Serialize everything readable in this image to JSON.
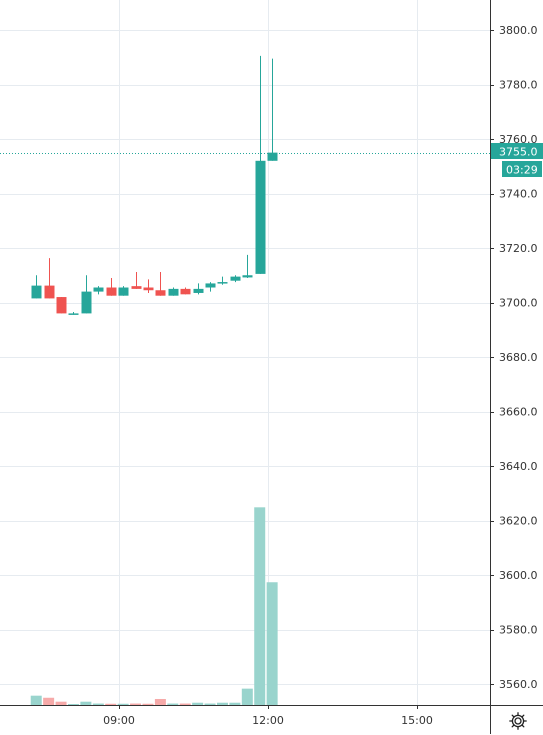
{
  "chart_data": {
    "type": "candlestick",
    "title": "",
    "xlabel": "",
    "ylabel": "",
    "ylim": [
      3552,
      3808
    ],
    "grid": true,
    "x_tick_labels": [
      "09:00",
      "12:00",
      "15:00"
    ],
    "y_tick_labels": [
      "3800.0",
      "3780.0",
      "3760.0",
      "3740.0",
      "3720.0",
      "3700.0",
      "3680.0",
      "3660.0",
      "3640.0",
      "3620.0",
      "3600.0",
      "3580.0",
      "3560.0"
    ],
    "y_ticks": [
      3800,
      3780,
      3760,
      3740,
      3720,
      3700,
      3680,
      3660,
      3640,
      3620,
      3600,
      3580,
      3560
    ],
    "last_price": 3755.0,
    "last_price_label": "3755.0",
    "countdown_label": "03:29",
    "colors": {
      "up": "#26a69a",
      "down": "#ef5350",
      "volume_up": "#99d4cd",
      "volume_down": "#f6aaa9",
      "price_line": "#26a69a",
      "grid": "#e6ebf0",
      "axis": "#333333"
    },
    "candles": [
      {
        "time": "07:20",
        "open": 3701.5,
        "high": 3710,
        "low": 3701.5,
        "close": 3706.2
      },
      {
        "time": "07:35",
        "open": 3706.2,
        "high": 3716.3,
        "low": 3701.5,
        "close": 3701.5
      },
      {
        "time": "07:50",
        "open": 3702,
        "high": 3702,
        "low": 3696,
        "close": 3696
      },
      {
        "time": "08:05",
        "open": 3696,
        "high": 3696.5,
        "low": 3695.5,
        "close": 3696
      },
      {
        "time": "08:20",
        "open": 3696,
        "high": 3710,
        "low": 3696,
        "close": 3704
      },
      {
        "time": "08:35",
        "open": 3704,
        "high": 3706,
        "low": 3703,
        "close": 3705.5
      },
      {
        "time": "08:50",
        "open": 3705.5,
        "high": 3709,
        "low": 3702.5,
        "close": 3702.5
      },
      {
        "time": "09:05",
        "open": 3702.5,
        "high": 3706,
        "low": 3702.5,
        "close": 3705.5
      },
      {
        "time": "09:20",
        "open": 3706,
        "high": 3711.2,
        "low": 3705,
        "close": 3705
      },
      {
        "time": "09:35",
        "open": 3705.5,
        "high": 3708.5,
        "low": 3703.5,
        "close": 3704.5
      },
      {
        "time": "09:50",
        "open": 3704.5,
        "high": 3711.2,
        "low": 3702.5,
        "close": 3702.5
      },
      {
        "time": "10:05",
        "open": 3702.5,
        "high": 3705.5,
        "low": 3702.5,
        "close": 3705
      },
      {
        "time": "10:20",
        "open": 3705,
        "high": 3705.5,
        "low": 3703,
        "close": 3703
      },
      {
        "time": "10:35",
        "open": 3703.5,
        "high": 3707,
        "low": 3703,
        "close": 3705
      },
      {
        "time": "10:50",
        "open": 3705.5,
        "high": 3707.5,
        "low": 3704,
        "close": 3707
      },
      {
        "time": "11:05",
        "open": 3707,
        "high": 3709.5,
        "low": 3706.5,
        "close": 3707.5
      },
      {
        "time": "11:20",
        "open": 3708,
        "high": 3710,
        "low": 3707.5,
        "close": 3709.5
      },
      {
        "time": "11:35",
        "open": 3709.2,
        "high": 3717.5,
        "low": 3709,
        "close": 3710
      },
      {
        "time": "11:50",
        "open": 3710.5,
        "high": 3790.5,
        "low": 3710.5,
        "close": 3752
      },
      {
        "time": "12:05",
        "open": 3752,
        "high": 3789.5,
        "low": 3752,
        "close": 3755
      }
    ],
    "volume_scale_max": 100,
    "volumes": [
      {
        "time": "07:20",
        "value": 4.5,
        "dir": "up"
      },
      {
        "time": "07:35",
        "value": 3.5,
        "dir": "down"
      },
      {
        "time": "07:50",
        "value": 1.6,
        "dir": "down"
      },
      {
        "time": "08:05",
        "value": 0.4,
        "dir": "up"
      },
      {
        "time": "08:20",
        "value": 1.6,
        "dir": "up"
      },
      {
        "time": "08:35",
        "value": 0.7,
        "dir": "up"
      },
      {
        "time": "08:50",
        "value": 0.6,
        "dir": "down"
      },
      {
        "time": "09:05",
        "value": 0.6,
        "dir": "up"
      },
      {
        "time": "09:20",
        "value": 0.7,
        "dir": "down"
      },
      {
        "time": "09:35",
        "value": 0.6,
        "dir": "down"
      },
      {
        "time": "09:50",
        "value": 2.9,
        "dir": "down"
      },
      {
        "time": "10:05",
        "value": 0.7,
        "dir": "up"
      },
      {
        "time": "10:20",
        "value": 0.7,
        "dir": "down"
      },
      {
        "time": "10:35",
        "value": 1.1,
        "dir": "up"
      },
      {
        "time": "10:50",
        "value": 0.7,
        "dir": "up"
      },
      {
        "time": "11:05",
        "value": 1.1,
        "dir": "up"
      },
      {
        "time": "11:20",
        "value": 1.1,
        "dir": "up"
      },
      {
        "time": "11:35",
        "value": 7.9,
        "dir": "up"
      },
      {
        "time": "11:50",
        "value": 95.5,
        "dir": "up"
      },
      {
        "time": "12:05",
        "value": 59.3,
        "dir": "up"
      }
    ]
  },
  "toolbar": {
    "settings_icon": "gear-icon"
  }
}
